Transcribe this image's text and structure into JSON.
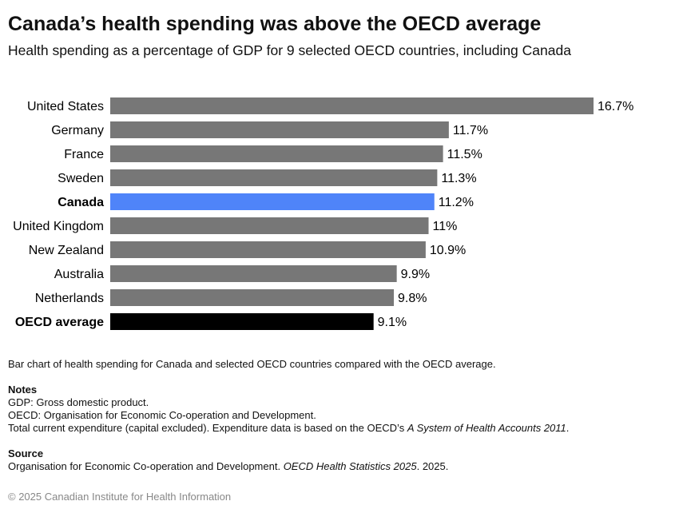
{
  "chart_data": {
    "type": "bar",
    "orientation": "horizontal",
    "title": "Canada’s health spending was above the OECD average",
    "subtitle": "Health spending as a percentage of GDP for 9 selected OECD countries, including Canada",
    "categories": [
      "United States",
      "Germany",
      "France",
      "Sweden",
      "Canada",
      "United Kingdom",
      "New Zealand",
      "Australia",
      "Netherlands",
      "OECD average"
    ],
    "values": [
      16.7,
      11.7,
      11.5,
      11.3,
      11.2,
      11,
      10.9,
      9.9,
      9.8,
      9.1
    ],
    "value_labels": [
      "16.7%",
      "11.7%",
      "11.5%",
      "11.3%",
      "11.2%",
      "11%",
      "10.9%",
      "9.9%",
      "9.8%",
      "9.1%"
    ],
    "highlight": {
      "Canada": "#4f84f9",
      "OECD average": "#000000"
    },
    "bold_categories": [
      "Canada",
      "OECD average"
    ],
    "default_color": "#777777",
    "xlim": [
      0,
      16.7
    ],
    "grid": false
  },
  "alt_text": "Bar chart of health spending for Canada and selected OECD countries compared with the OECD average.",
  "notes": {
    "heading": "Notes",
    "lines": [
      "GDP: Gross domestic product.",
      "OECD: Organisation for Economic Co-operation and Development."
    ],
    "line3_start": "Total current expenditure (capital excluded). Expenditure data is based on the OECD’s ",
    "line3_italic": "A System of Health Accounts 2011",
    "line3_end": "."
  },
  "source": {
    "heading": "Source",
    "start": "Organisation for Economic Co-operation and Development. ",
    "italic": "OECD Health Statistics 2025",
    "end": ". 2025."
  },
  "copyright": "© 2025 Canadian Institute for Health Information"
}
